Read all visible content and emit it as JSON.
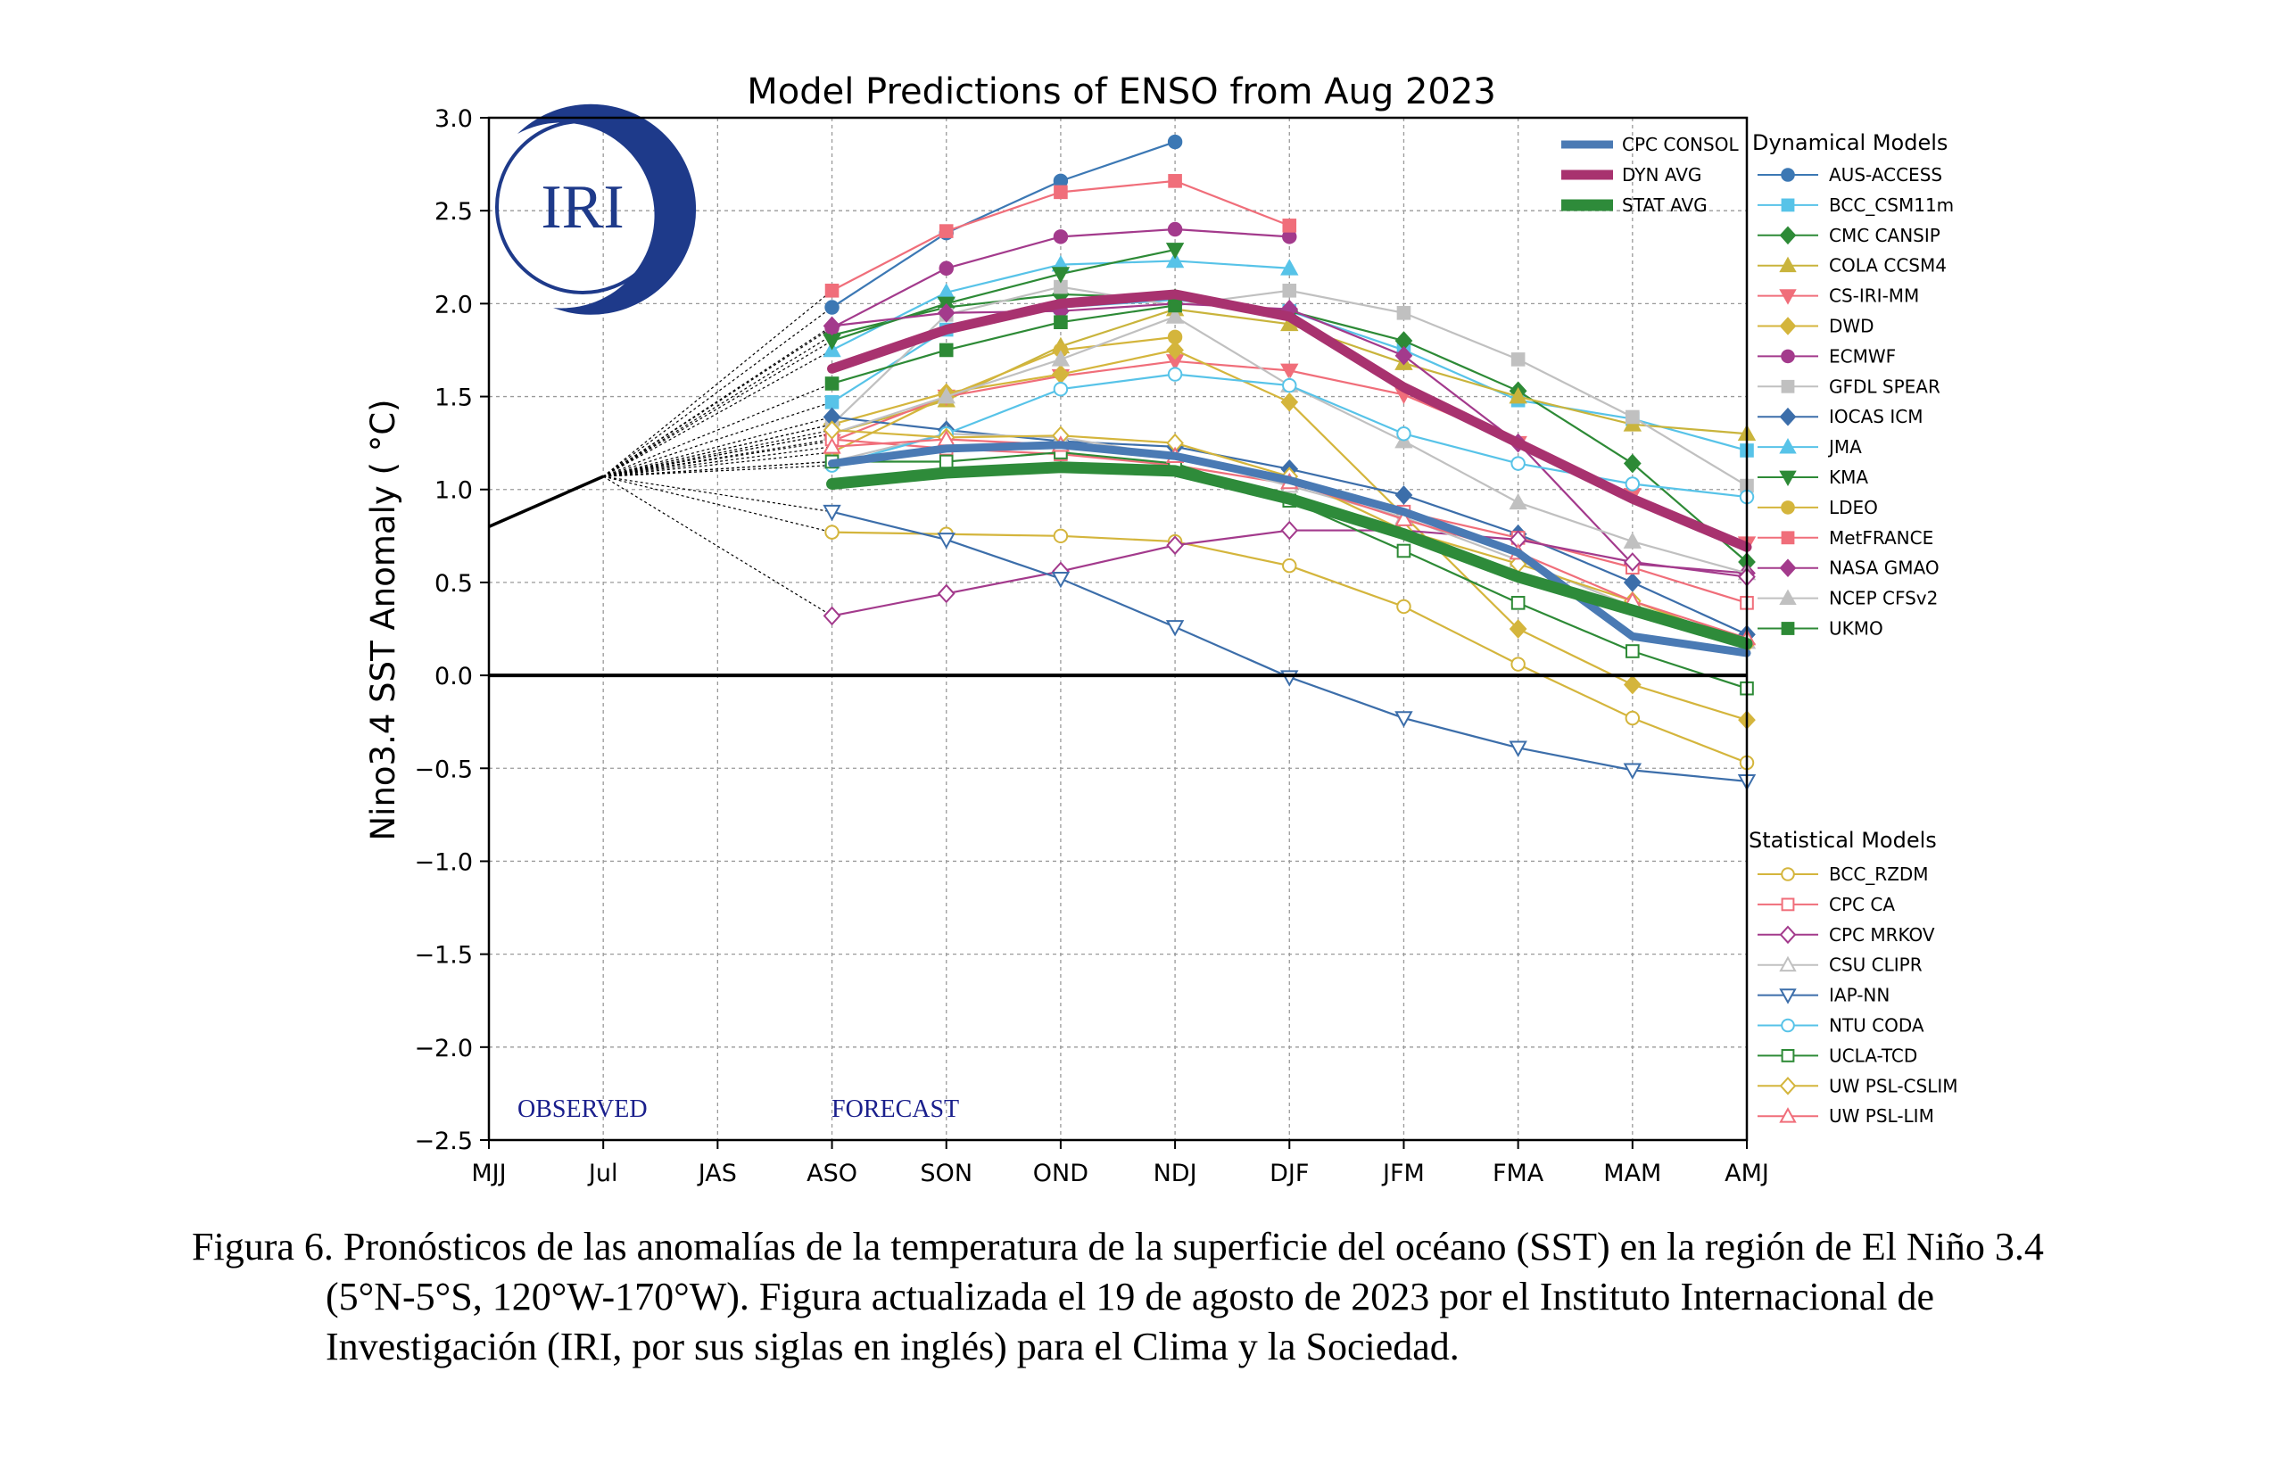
{
  "caption": "Figura 6. Pronósticos de las anomalías de la temperatura de la superficie del océano (SST) en la región de El Niño 3.4 (5°N-5°S, 120°W-170°W). Figura actualizada el 19 de agosto de 2023 por el Instituto Internacional de Investigación (IRI, por sus siglas en inglés) para el Clima y la Sociedad.",
  "logo_text": "IRI",
  "chart_data": {
    "type": "line",
    "title": "Model Predictions of ENSO from Aug 2023",
    "ylabel": "Nino3.4 SST Anomaly ( °C)",
    "xlabel": "",
    "categories": [
      "MJJ",
      "Jul",
      "JAS",
      "ASO",
      "SON",
      "OND",
      "NDJ",
      "DJF",
      "JFM",
      "FMA",
      "MAM",
      "AMJ"
    ],
    "ylim": [
      -2.5,
      3.0
    ],
    "yticks": [
      "3.0",
      "2.5",
      "2.0",
      "1.5",
      "1.0",
      "0.5",
      "0.0",
      "−0.5",
      "−1.0",
      "−1.5",
      "−2.0",
      "−2.5"
    ],
    "grid": true,
    "phase_labels": {
      "observed": "OBSERVED",
      "forecast": "FORECAST"
    },
    "observed": {
      "values": [
        0.8,
        1.07
      ]
    },
    "legend_groups": {
      "dynamical": "Dynamical Models",
      "statistical": "Statistical Models"
    },
    "averages": [
      {
        "name": "CPC CONSOL",
        "color": "#4a7ab4",
        "values": [
          null,
          null,
          null,
          1.14,
          1.22,
          1.24,
          1.18,
          1.05,
          0.88,
          0.66,
          0.21,
          0.12
        ]
      },
      {
        "name": "DYN AVG",
        "color": "#a8326f",
        "values": [
          null,
          null,
          null,
          1.65,
          1.86,
          2.0,
          2.05,
          1.93,
          1.55,
          1.25,
          0.95,
          0.69
        ]
      },
      {
        "name": "STAT AVG",
        "color": "#2e8b3a",
        "values": [
          null,
          null,
          null,
          1.03,
          1.09,
          1.12,
          1.1,
          0.95,
          0.76,
          0.53,
          0.35,
          0.17
        ]
      }
    ],
    "series": [
      {
        "name": "AUS-ACCESS",
        "group": "dynamical",
        "marker": "circle",
        "filled": true,
        "color": "#3c78b4",
        "values": [
          null,
          null,
          null,
          1.98,
          2.38,
          2.66,
          2.87,
          null,
          null,
          null,
          null,
          null
        ]
      },
      {
        "name": "BCC_CSM11m",
        "group": "dynamical",
        "marker": "square",
        "filled": true,
        "color": "#57c3e8",
        "values": [
          null,
          null,
          null,
          1.47,
          1.86,
          1.98,
          2.02,
          1.96,
          1.75,
          1.48,
          1.38,
          1.21
        ]
      },
      {
        "name": "CMC CANSIP",
        "group": "dynamical",
        "marker": "diamond",
        "filled": true,
        "color": "#2d8a36",
        "values": [
          null,
          null,
          null,
          1.83,
          1.98,
          2.05,
          2.03,
          1.96,
          1.8,
          1.53,
          1.14,
          0.61
        ]
      },
      {
        "name": "COLA CCSM4",
        "group": "dynamical",
        "marker": "triangle-up",
        "filled": true,
        "color": "#c9b43c",
        "values": [
          null,
          null,
          null,
          1.3,
          1.48,
          1.77,
          1.97,
          1.89,
          1.68,
          1.5,
          1.35,
          1.3
        ]
      },
      {
        "name": "CS-IRI-MM",
        "group": "dynamical",
        "marker": "triangle-down",
        "filled": true,
        "color": "#f06e7a",
        "values": [
          null,
          null,
          null,
          1.26,
          1.5,
          1.61,
          1.69,
          1.64,
          1.51,
          1.25,
          0.97,
          0.71
        ]
      },
      {
        "name": "DWD",
        "group": "dynamical",
        "marker": "diamond",
        "filled": true,
        "color": "#d4b53c",
        "values": [
          null,
          null,
          null,
          1.35,
          1.52,
          1.62,
          1.75,
          1.47,
          0.86,
          0.25,
          -0.05,
          -0.24
        ]
      },
      {
        "name": "ECMWF",
        "group": "dynamical",
        "marker": "circle",
        "filled": true,
        "color": "#a33a8c",
        "values": [
          null,
          null,
          null,
          1.87,
          2.19,
          2.36,
          2.4,
          2.36,
          null,
          null,
          null,
          null
        ]
      },
      {
        "name": "GFDL SPEAR",
        "group": "dynamical",
        "marker": "square",
        "filled": true,
        "color": "#c0c0c0",
        "values": [
          null,
          null,
          null,
          1.35,
          1.94,
          2.09,
          1.99,
          2.07,
          1.95,
          1.7,
          1.39,
          1.02
        ]
      },
      {
        "name": "IOCAS ICM",
        "group": "dynamical",
        "marker": "diamond",
        "filled": true,
        "color": "#3c6eaa",
        "values": [
          null,
          null,
          null,
          1.39,
          1.32,
          1.26,
          1.23,
          1.11,
          0.97,
          0.76,
          0.5,
          0.22
        ]
      },
      {
        "name": "JMA",
        "group": "dynamical",
        "marker": "triangle-up",
        "filled": true,
        "color": "#57c3e8",
        "values": [
          null,
          null,
          null,
          1.75,
          2.06,
          2.21,
          2.23,
          2.19,
          null,
          null,
          null,
          null
        ]
      },
      {
        "name": "KMA",
        "group": "dynamical",
        "marker": "triangle-down",
        "filled": true,
        "color": "#2d8a36",
        "values": [
          null,
          null,
          null,
          1.8,
          2.0,
          2.16,
          2.29,
          null,
          null,
          null,
          null,
          null
        ]
      },
      {
        "name": "LDEO",
        "group": "dynamical",
        "marker": "circle",
        "filled": true,
        "color": "#d4b53c",
        "values": [
          null,
          null,
          null,
          1.2,
          1.5,
          1.75,
          1.82,
          null,
          null,
          null,
          null,
          null
        ]
      },
      {
        "name": "MetFRANCE",
        "group": "dynamical",
        "marker": "square",
        "filled": true,
        "color": "#f06e7a",
        "values": [
          null,
          null,
          null,
          2.07,
          2.39,
          2.6,
          2.66,
          2.42,
          null,
          null,
          null,
          null
        ]
      },
      {
        "name": "NASA GMAO",
        "group": "dynamical",
        "marker": "diamond",
        "filled": true,
        "color": "#a33a8c",
        "values": [
          null,
          null,
          null,
          1.88,
          1.95,
          1.96,
          2.0,
          1.97,
          1.72,
          1.25,
          0.6,
          0.55
        ]
      },
      {
        "name": "NCEP CFSv2",
        "group": "dynamical",
        "marker": "triangle-up",
        "filled": true,
        "color": "#c0c0c0",
        "values": [
          null,
          null,
          null,
          1.3,
          1.5,
          1.7,
          1.93,
          1.56,
          1.26,
          0.93,
          0.72,
          0.55
        ]
      },
      {
        "name": "UKMO",
        "group": "dynamical",
        "marker": "square",
        "filled": true,
        "color": "#2d8a36",
        "values": [
          null,
          null,
          null,
          1.57,
          1.75,
          1.9,
          1.99,
          null,
          null,
          null,
          null,
          null
        ]
      },
      {
        "name": "BCC_RZDM",
        "group": "statistical",
        "marker": "circle",
        "filled": false,
        "color": "#d4b53c",
        "values": [
          null,
          null,
          null,
          0.77,
          0.76,
          0.75,
          0.72,
          0.59,
          0.37,
          0.06,
          -0.23,
          -0.47
        ]
      },
      {
        "name": "CPC CA",
        "group": "statistical",
        "marker": "square",
        "filled": false,
        "color": "#f06e7a",
        "values": [
          null,
          null,
          null,
          1.27,
          1.22,
          1.19,
          1.13,
          1.03,
          0.88,
          0.74,
          0.58,
          0.39
        ]
      },
      {
        "name": "CPC MRKOV",
        "group": "statistical",
        "marker": "diamond",
        "filled": false,
        "color": "#a33a8c",
        "values": [
          null,
          null,
          null,
          0.32,
          0.44,
          0.56,
          0.7,
          0.78,
          0.78,
          0.73,
          0.61,
          0.53
        ]
      },
      {
        "name": "CSU CLIPR",
        "group": "statistical",
        "marker": "triangle-up",
        "filled": false,
        "color": "#c0c0c0",
        "values": [
          null,
          null,
          null,
          1.15,
          1.3,
          1.28,
          1.18,
          1.02,
          0.85,
          0.62,
          0.37,
          0.18
        ]
      },
      {
        "name": "IAP-NN",
        "group": "statistical",
        "marker": "triangle-down",
        "filled": false,
        "color": "#3c6eaa",
        "values": [
          null,
          null,
          null,
          0.88,
          0.73,
          0.52,
          0.26,
          -0.01,
          -0.23,
          -0.39,
          -0.51,
          -0.57
        ]
      },
      {
        "name": "NTU CODA",
        "group": "statistical",
        "marker": "circle",
        "filled": false,
        "color": "#57c3e8",
        "values": [
          null,
          null,
          null,
          1.13,
          1.3,
          1.54,
          1.62,
          1.56,
          1.3,
          1.14,
          1.03,
          0.96
        ]
      },
      {
        "name": "UCLA-TCD",
        "group": "statistical",
        "marker": "square",
        "filled": false,
        "color": "#2d8a36",
        "values": [
          null,
          null,
          null,
          1.15,
          1.15,
          1.2,
          1.14,
          0.94,
          0.67,
          0.39,
          0.13,
          -0.07
        ]
      },
      {
        "name": "UW PSL-CSLIM",
        "group": "statistical",
        "marker": "diamond",
        "filled": false,
        "color": "#d4b53c",
        "values": [
          null,
          null,
          null,
          1.32,
          1.28,
          1.29,
          1.25,
          1.07,
          0.78,
          0.6,
          0.4,
          0.17
        ]
      },
      {
        "name": "UW PSL-LIM",
        "group": "statistical",
        "marker": "triangle-up",
        "filled": false,
        "color": "#f06e7a",
        "values": [
          null,
          null,
          null,
          1.23,
          1.27,
          1.24,
          1.18,
          1.04,
          0.84,
          0.66,
          0.4,
          0.2
        ]
      }
    ]
  }
}
